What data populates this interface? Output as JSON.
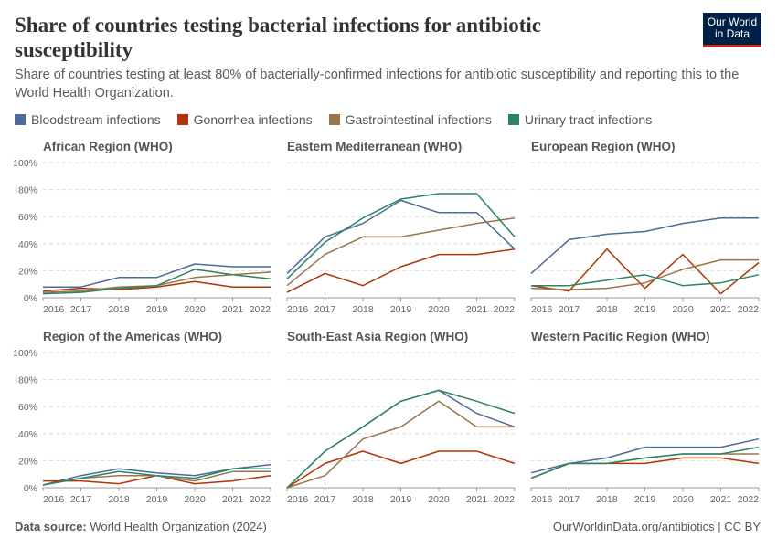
{
  "header": {
    "title": "Share of countries testing bacterial infections for antibiotic susceptibility",
    "subtitle": "Share of countries testing at least 80% of bacterially-confirmed infections for antibiotic susceptibility and reporting this to the World Health Organization.",
    "logo": [
      "Our World",
      "in Data"
    ]
  },
  "chart_data": [
    {
      "type": "line",
      "title": "African Region (WHO)",
      "x": [
        2016,
        2017,
        2018,
        2019,
        2020,
        2021,
        2022
      ],
      "xlim": [
        2016,
        2022
      ],
      "xticks": [
        2016,
        2017,
        2018,
        2019,
        2020,
        2021,
        2022
      ],
      "ylim": [
        0,
        100
      ],
      "yticks": [
        {
          "value": 0,
          "label": "0%"
        },
        {
          "value": 20,
          "label": "20%"
        },
        {
          "value": 40,
          "label": "40%"
        },
        {
          "value": 60,
          "label": "60%"
        },
        {
          "value": 80,
          "label": "80%"
        },
        {
          "value": 100,
          "label": "100%"
        }
      ],
      "grid": true,
      "series": [
        {
          "name": "Bloodstream infections",
          "color": "#4c6a9c",
          "values": [
            8,
            8,
            15,
            15,
            25,
            23,
            23
          ]
        },
        {
          "name": "Gonorrhea infections",
          "color": "#b13507",
          "values": [
            5,
            7,
            6,
            8,
            12,
            8,
            8
          ]
        },
        {
          "name": "Gastrointestinal infections",
          "color": "#9a7549",
          "values": [
            4,
            5,
            8,
            9,
            15,
            17,
            19
          ]
        },
        {
          "name": "Urinary tract infections",
          "color": "#2c8465",
          "values": [
            3,
            4,
            7,
            9,
            21,
            17,
            14
          ]
        }
      ]
    },
    {
      "type": "line",
      "title": "Eastern Mediterranean (WHO)",
      "x": [
        2016,
        2017,
        2018,
        2019,
        2020,
        2021,
        2022
      ],
      "xlim": [
        2016,
        2022
      ],
      "xticks": [
        2016,
        2017,
        2018,
        2019,
        2020,
        2021,
        2022
      ],
      "ylim": [
        0,
        100
      ],
      "yticks": [
        {
          "value": 0,
          "label": "0%"
        },
        {
          "value": 20,
          "label": "20%"
        },
        {
          "value": 40,
          "label": "40%"
        },
        {
          "value": 60,
          "label": "60%"
        },
        {
          "value": 80,
          "label": "80%"
        },
        {
          "value": 100,
          "label": "100%"
        }
      ],
      "grid": true,
      "series": [
        {
          "name": "Bloodstream infections",
          "color": "#4c6a9c",
          "values": [
            18,
            45,
            55,
            72,
            63,
            63,
            36
          ]
        },
        {
          "name": "Gonorrhea infections",
          "color": "#b13507",
          "values": [
            4,
            18,
            9,
            23,
            32,
            32,
            36
          ]
        },
        {
          "name": "Gastrointestinal infections",
          "color": "#9a7549",
          "values": [
            9,
            32,
            45,
            45,
            50,
            55,
            59
          ]
        },
        {
          "name": "Urinary tract infections",
          "color": "#2c8465",
          "values": [
            14,
            41,
            59,
            73,
            77,
            77,
            45
          ]
        }
      ]
    },
    {
      "type": "line",
      "title": "European Region (WHO)",
      "x": [
        2016,
        2017,
        2018,
        2019,
        2020,
        2021,
        2022
      ],
      "xlim": [
        2016,
        2022
      ],
      "xticks": [
        2016,
        2017,
        2018,
        2019,
        2020,
        2021,
        2022
      ],
      "ylim": [
        0,
        100
      ],
      "yticks": [
        {
          "value": 0,
          "label": "0%"
        },
        {
          "value": 20,
          "label": "20%"
        },
        {
          "value": 40,
          "label": "40%"
        },
        {
          "value": 60,
          "label": "60%"
        },
        {
          "value": 80,
          "label": "80%"
        },
        {
          "value": 100,
          "label": "100%"
        }
      ],
      "grid": true,
      "series": [
        {
          "name": "Bloodstream infections",
          "color": "#4c6a9c",
          "values": [
            18,
            43,
            47,
            49,
            55,
            59,
            59
          ]
        },
        {
          "name": "Gonorrhea infections",
          "color": "#b13507",
          "values": [
            9,
            5,
            36,
            7,
            32,
            3,
            26
          ]
        },
        {
          "name": "Gastrointestinal infections",
          "color": "#9a7549",
          "values": [
            7,
            6,
            7,
            11,
            21,
            28,
            28
          ]
        },
        {
          "name": "Urinary tract infections",
          "color": "#2c8465",
          "values": [
            9,
            9,
            13,
            17,
            9,
            11,
            17
          ]
        }
      ]
    },
    {
      "type": "line",
      "title": "Region of the Americas (WHO)",
      "x": [
        2016,
        2017,
        2018,
        2019,
        2020,
        2021,
        2022
      ],
      "xlim": [
        2016,
        2022
      ],
      "xticks": [
        2016,
        2017,
        2018,
        2019,
        2020,
        2021,
        2022
      ],
      "ylim": [
        0,
        100
      ],
      "yticks": [
        {
          "value": 0,
          "label": "0%"
        },
        {
          "value": 20,
          "label": "20%"
        },
        {
          "value": 40,
          "label": "40%"
        },
        {
          "value": 60,
          "label": "60%"
        },
        {
          "value": 80,
          "label": "80%"
        },
        {
          "value": 100,
          "label": "100%"
        }
      ],
      "grid": true,
      "series": [
        {
          "name": "Bloodstream infections",
          "color": "#4c6a9c",
          "values": [
            2,
            9,
            14,
            11,
            9,
            14,
            17
          ]
        },
        {
          "name": "Gonorrhea infections",
          "color": "#b13507",
          "values": [
            5,
            5,
            3,
            9,
            3,
            5,
            9
          ]
        },
        {
          "name": "Gastrointestinal infections",
          "color": "#9a7549",
          "values": [
            2,
            7,
            9,
            9,
            5,
            12,
            12
          ]
        },
        {
          "name": "Urinary tract infections",
          "color": "#2c8465",
          "values": [
            2,
            7,
            12,
            9,
            7,
            14,
            14
          ]
        }
      ]
    },
    {
      "type": "line",
      "title": "South-East Asia Region (WHO)",
      "x": [
        2016,
        2017,
        2018,
        2019,
        2020,
        2021,
        2022
      ],
      "xlim": [
        2016,
        2022
      ],
      "xticks": [
        2016,
        2017,
        2018,
        2019,
        2020,
        2021,
        2022
      ],
      "ylim": [
        0,
        100
      ],
      "yticks": [
        {
          "value": 0,
          "label": "0%"
        },
        {
          "value": 20,
          "label": "20%"
        },
        {
          "value": 40,
          "label": "40%"
        },
        {
          "value": 60,
          "label": "60%"
        },
        {
          "value": 80,
          "label": "80%"
        },
        {
          "value": 100,
          "label": "100%"
        }
      ],
      "grid": true,
      "series": [
        {
          "name": "Bloodstream infections",
          "color": "#4c6a9c",
          "values": [
            0,
            27,
            45,
            64,
            72,
            55,
            45
          ]
        },
        {
          "name": "Gonorrhea infections",
          "color": "#b13507",
          "values": [
            0,
            18,
            27,
            18,
            27,
            27,
            18
          ]
        },
        {
          "name": "Gastrointestinal infections",
          "color": "#9a7549",
          "values": [
            0,
            9,
            36,
            45,
            64,
            45,
            45
          ]
        },
        {
          "name": "Urinary tract infections",
          "color": "#2c8465",
          "values": [
            0,
            27,
            45,
            64,
            72,
            64,
            55
          ]
        }
      ]
    },
    {
      "type": "line",
      "title": "Western Pacific Region (WHO)",
      "x": [
        2016,
        2017,
        2018,
        2019,
        2020,
        2021,
        2022
      ],
      "xlim": [
        2016,
        2022
      ],
      "xticks": [
        2016,
        2017,
        2018,
        2019,
        2020,
        2021,
        2022
      ],
      "ylim": [
        0,
        100
      ],
      "yticks": [
        {
          "value": 0,
          "label": "0%"
        },
        {
          "value": 20,
          "label": "20%"
        },
        {
          "value": 40,
          "label": "40%"
        },
        {
          "value": 60,
          "label": "60%"
        },
        {
          "value": 80,
          "label": "80%"
        },
        {
          "value": 100,
          "label": "100%"
        }
      ],
      "grid": true,
      "series": [
        {
          "name": "Bloodstream infections",
          "color": "#4c6a9c",
          "values": [
            11,
            18,
            22,
            30,
            30,
            30,
            36
          ]
        },
        {
          "name": "Gonorrhea infections",
          "color": "#b13507",
          "values": [
            7,
            18,
            18,
            18,
            22,
            22,
            18
          ]
        },
        {
          "name": "Gastrointestinal infections",
          "color": "#9a7549",
          "values": [
            7,
            18,
            18,
            22,
            25,
            25,
            25
          ]
        },
        {
          "name": "Urinary tract infections",
          "color": "#2c8465",
          "values": [
            7,
            18,
            18,
            22,
            25,
            25,
            30
          ]
        }
      ]
    }
  ],
  "footer": {
    "source_label": "Data source:",
    "source": "World Health Organization (2024)",
    "url": "OurWorldinData.org/antibiotics | CC BY"
  }
}
